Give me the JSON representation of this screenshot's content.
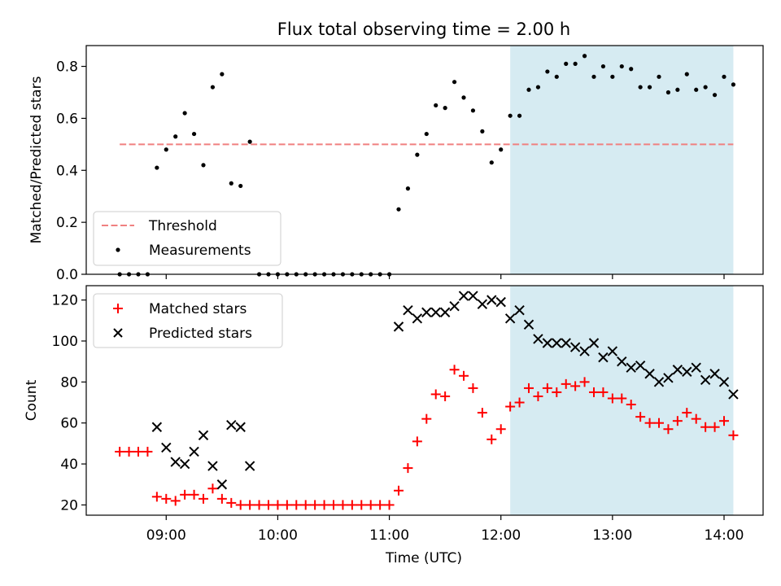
{
  "figure": {
    "title": "Flux total observing time = 2.00 h",
    "xlabel": "Time (UTC)",
    "x_ticks": [
      "09:00",
      "10:00",
      "11:00",
      "12:00",
      "13:00",
      "14:00"
    ],
    "highlight_color": "#add8e6"
  },
  "chart_data": [
    {
      "type": "scatter",
      "ylabel": "Matched/Predicted stars",
      "xlim": [
        "08:17",
        "14:21"
      ],
      "ylim": [
        0,
        0.88
      ],
      "yticks": [
        "0.0",
        "0.2",
        "0.4",
        "0.6",
        "0.8"
      ],
      "highlight_span": [
        "12:05",
        "14:05"
      ],
      "legend": {
        "placement": "lower-left",
        "entries": [
          "Threshold",
          "Measurements"
        ]
      },
      "threshold": {
        "name": "Threshold",
        "value": 0.5,
        "x": [
          "08:35",
          "14:05"
        ],
        "color": "#f08080",
        "style": "dashed"
      },
      "series": [
        {
          "name": "Measurements",
          "color": "#000000",
          "marker": "dot",
          "points": [
            [
              "08:35",
              0.0
            ],
            [
              "08:40",
              0.0
            ],
            [
              "08:45",
              0.0
            ],
            [
              "08:50",
              0.0
            ],
            [
              "08:55",
              0.41
            ],
            [
              "09:00",
              0.48
            ],
            [
              "09:05",
              0.53
            ],
            [
              "09:10",
              0.62
            ],
            [
              "09:15",
              0.54
            ],
            [
              "09:20",
              0.42
            ],
            [
              "09:25",
              0.72
            ],
            [
              "09:30",
              0.77
            ],
            [
              "09:35",
              0.35
            ],
            [
              "09:40",
              0.34
            ],
            [
              "09:45",
              0.51
            ],
            [
              "09:50",
              0.0
            ],
            [
              "09:55",
              0.0
            ],
            [
              "10:00",
              0.0
            ],
            [
              "10:05",
              0.0
            ],
            [
              "10:10",
              0.0
            ],
            [
              "10:15",
              0.0
            ],
            [
              "10:20",
              0.0
            ],
            [
              "10:25",
              0.0
            ],
            [
              "10:30",
              0.0
            ],
            [
              "10:35",
              0.0
            ],
            [
              "10:40",
              0.0
            ],
            [
              "10:45",
              0.0
            ],
            [
              "10:50",
              0.0
            ],
            [
              "10:55",
              0.0
            ],
            [
              "11:00",
              0.0
            ],
            [
              "11:05",
              0.25
            ],
            [
              "11:10",
              0.33
            ],
            [
              "11:15",
              0.46
            ],
            [
              "11:20",
              0.54
            ],
            [
              "11:25",
              0.65
            ],
            [
              "11:30",
              0.64
            ],
            [
              "11:35",
              0.74
            ],
            [
              "11:40",
              0.68
            ],
            [
              "11:45",
              0.63
            ],
            [
              "11:50",
              0.55
            ],
            [
              "11:55",
              0.43
            ],
            [
              "12:00",
              0.48
            ],
            [
              "12:05",
              0.61
            ],
            [
              "12:10",
              0.61
            ],
            [
              "12:15",
              0.71
            ],
            [
              "12:20",
              0.72
            ],
            [
              "12:25",
              0.78
            ],
            [
              "12:30",
              0.76
            ],
            [
              "12:35",
              0.81
            ],
            [
              "12:40",
              0.81
            ],
            [
              "12:45",
              0.84
            ],
            [
              "12:50",
              0.76
            ],
            [
              "12:55",
              0.8
            ],
            [
              "13:00",
              0.76
            ],
            [
              "13:05",
              0.8
            ],
            [
              "13:10",
              0.79
            ],
            [
              "13:15",
              0.72
            ],
            [
              "13:20",
              0.72
            ],
            [
              "13:25",
              0.76
            ],
            [
              "13:30",
              0.7
            ],
            [
              "13:35",
              0.71
            ],
            [
              "13:40",
              0.77
            ],
            [
              "13:45",
              0.71
            ],
            [
              "13:50",
              0.72
            ],
            [
              "13:55",
              0.69
            ],
            [
              "14:00",
              0.76
            ],
            [
              "14:05",
              0.73
            ]
          ]
        }
      ]
    },
    {
      "type": "scatter",
      "ylabel": "Count",
      "xlim": [
        "08:17",
        "14:21"
      ],
      "ylim": [
        15,
        127
      ],
      "yticks": [
        "20",
        "40",
        "60",
        "80",
        "100",
        "120"
      ],
      "highlight_span": [
        "12:05",
        "14:05"
      ],
      "legend": {
        "placement": "upper-left",
        "entries": [
          "Matched stars",
          "Predicted stars"
        ]
      },
      "series": [
        {
          "name": "Matched stars",
          "color": "#ff0000",
          "marker": "plus",
          "points": [
            [
              "08:35",
              46
            ],
            [
              "08:40",
              46
            ],
            [
              "08:45",
              46
            ],
            [
              "08:50",
              46
            ],
            [
              "08:55",
              24
            ],
            [
              "09:00",
              23
            ],
            [
              "09:05",
              22
            ],
            [
              "09:10",
              25
            ],
            [
              "09:15",
              25
            ],
            [
              "09:20",
              23
            ],
            [
              "09:25",
              28
            ],
            [
              "09:30",
              23
            ],
            [
              "09:35",
              21
            ],
            [
              "09:40",
              20
            ],
            [
              "09:45",
              20
            ],
            [
              "09:50",
              20
            ],
            [
              "09:55",
              20
            ],
            [
              "10:00",
              20
            ],
            [
              "10:05",
              20
            ],
            [
              "10:10",
              20
            ],
            [
              "10:15",
              20
            ],
            [
              "10:20",
              20
            ],
            [
              "10:25",
              20
            ],
            [
              "10:30",
              20
            ],
            [
              "10:35",
              20
            ],
            [
              "10:40",
              20
            ],
            [
              "10:45",
              20
            ],
            [
              "10:50",
              20
            ],
            [
              "10:55",
              20
            ],
            [
              "11:00",
              20
            ],
            [
              "11:05",
              27
            ],
            [
              "11:10",
              38
            ],
            [
              "11:15",
              51
            ],
            [
              "11:20",
              62
            ],
            [
              "11:25",
              74
            ],
            [
              "11:30",
              73
            ],
            [
              "11:35",
              86
            ],
            [
              "11:40",
              83
            ],
            [
              "11:45",
              77
            ],
            [
              "11:50",
              65
            ],
            [
              "11:55",
              52
            ],
            [
              "12:00",
              57
            ],
            [
              "12:05",
              68
            ],
            [
              "12:10",
              70
            ],
            [
              "12:15",
              77
            ],
            [
              "12:20",
              73
            ],
            [
              "12:25",
              77
            ],
            [
              "12:30",
              75
            ],
            [
              "12:35",
              79
            ],
            [
              "12:40",
              78
            ],
            [
              "12:45",
              80
            ],
            [
              "12:50",
              75
            ],
            [
              "12:55",
              75
            ],
            [
              "13:00",
              72
            ],
            [
              "13:05",
              72
            ],
            [
              "13:10",
              69
            ],
            [
              "13:15",
              63
            ],
            [
              "13:20",
              60
            ],
            [
              "13:25",
              60
            ],
            [
              "13:30",
              57
            ],
            [
              "13:35",
              61
            ],
            [
              "13:40",
              65
            ],
            [
              "13:45",
              62
            ],
            [
              "13:50",
              58
            ],
            [
              "13:55",
              58
            ],
            [
              "14:00",
              61
            ],
            [
              "14:05",
              54
            ]
          ]
        },
        {
          "name": "Predicted stars",
          "color": "#000000",
          "marker": "x",
          "points": [
            [
              "08:55",
              58
            ],
            [
              "09:00",
              48
            ],
            [
              "09:05",
              41
            ],
            [
              "09:10",
              40
            ],
            [
              "09:15",
              46
            ],
            [
              "09:20",
              54
            ],
            [
              "09:25",
              39
            ],
            [
              "09:30",
              30
            ],
            [
              "09:35",
              59
            ],
            [
              "09:40",
              58
            ],
            [
              "09:45",
              39
            ],
            [
              "11:05",
              107
            ],
            [
              "11:10",
              115
            ],
            [
              "11:15",
              111
            ],
            [
              "11:20",
              114
            ],
            [
              "11:25",
              114
            ],
            [
              "11:30",
              114
            ],
            [
              "11:35",
              117
            ],
            [
              "11:40",
              122
            ],
            [
              "11:45",
              122
            ],
            [
              "11:50",
              118
            ],
            [
              "11:55",
              120
            ],
            [
              "12:00",
              119
            ],
            [
              "12:05",
              111
            ],
            [
              "12:10",
              115
            ],
            [
              "12:15",
              108
            ],
            [
              "12:20",
              101
            ],
            [
              "12:25",
              99
            ],
            [
              "12:30",
              99
            ],
            [
              "12:35",
              99
            ],
            [
              "12:40",
              97
            ],
            [
              "12:45",
              95
            ],
            [
              "12:50",
              99
            ],
            [
              "12:55",
              92
            ],
            [
              "13:00",
              95
            ],
            [
              "13:05",
              90
            ],
            [
              "13:10",
              87
            ],
            [
              "13:15",
              88
            ],
            [
              "13:20",
              84
            ],
            [
              "13:25",
              80
            ],
            [
              "13:30",
              82
            ],
            [
              "13:35",
              86
            ],
            [
              "13:40",
              85
            ],
            [
              "13:45",
              87
            ],
            [
              "13:50",
              81
            ],
            [
              "13:55",
              84
            ],
            [
              "14:00",
              80
            ],
            [
              "14:05",
              74
            ]
          ]
        }
      ]
    }
  ]
}
